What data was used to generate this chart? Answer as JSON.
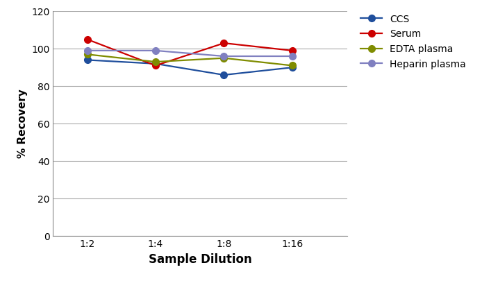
{
  "x_labels": [
    "1:2",
    "1:4",
    "1:8",
    "1:16"
  ],
  "x_positions": [
    1,
    2,
    3,
    4
  ],
  "series": [
    {
      "name": "CCS",
      "color": "#1f4e9c",
      "values": [
        94,
        92,
        86,
        90
      ]
    },
    {
      "name": "Serum",
      "color": "#cc0000",
      "values": [
        105,
        91,
        103,
        99
      ]
    },
    {
      "name": "EDTA plasma",
      "color": "#7f8c00",
      "values": [
        97,
        93,
        95,
        91
      ]
    },
    {
      "name": "Heparin plasma",
      "color": "#8080c0",
      "values": [
        99,
        99,
        96,
        96
      ]
    }
  ],
  "xlabel": "Sample Dilution",
  "ylabel": "% Recovery",
  "ylim": [
    0,
    120
  ],
  "yticks": [
    0,
    20,
    40,
    60,
    80,
    100,
    120
  ],
  "grid_color": "#aaaaaa",
  "background_color": "#ffffff",
  "marker_size": 7,
  "line_width": 1.6,
  "xlabel_fontsize": 12,
  "ylabel_fontsize": 11,
  "tick_fontsize": 10,
  "legend_fontsize": 10
}
